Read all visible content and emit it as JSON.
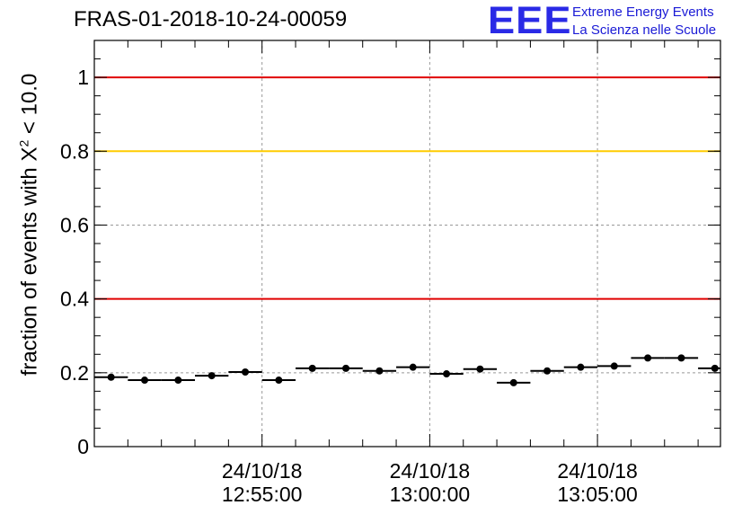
{
  "title": "FRAS-01-2018-10-24-00059",
  "logo": {
    "mark": "EEE",
    "line1": "Extreme Energy Events",
    "line2": "La Scienza nelle Scuole",
    "color": "#2a2ae6"
  },
  "chart_data": {
    "type": "scatter",
    "title": "FRAS-01-2018-10-24-00059",
    "xlabel": "",
    "ylabel_prefix": "fraction of events with ",
    "ylabel_chi": "X",
    "ylabel_sup": "2",
    "ylabel_suffix": " < 10.0",
    "x_unit": "minutes",
    "xlim": [
      "2018-10-24 12:50:00",
      "2018-10-24 13:08:40"
    ],
    "ylim": [
      0,
      1.1
    ],
    "yticks": [
      "0",
      "0.2",
      "0.4",
      "0.6",
      "0.8",
      "1"
    ],
    "xticks": [
      {
        "date": "24/10/18",
        "time": "12:55:00"
      },
      {
        "date": "24/10/18",
        "time": "13:00:00"
      },
      {
        "date": "24/10/18",
        "time": "13:05:00"
      }
    ],
    "grid": true,
    "series": [
      {
        "marker": "circle",
        "color": "#000000",
        "bin_width_minutes": 1,
        "x": [
          "12:50:30",
          "12:51:30",
          "12:52:30",
          "12:53:30",
          "12:54:30",
          "12:55:30",
          "12:56:30",
          "12:57:30",
          "12:58:30",
          "12:59:30",
          "13:00:30",
          "13:01:30",
          "13:02:30",
          "13:03:30",
          "13:04:30",
          "13:05:30",
          "13:06:30",
          "13:07:30",
          "13:08:30"
        ],
        "y": [
          0.188,
          0.18,
          0.18,
          0.192,
          0.202,
          0.18,
          0.212,
          0.212,
          0.205,
          0.215,
          0.197,
          0.21,
          0.173,
          0.205,
          0.215,
          0.218,
          0.24,
          0.24,
          0.212
        ]
      }
    ],
    "reference_lines": [
      {
        "y": 1.0,
        "color": "#e00000"
      },
      {
        "y": 0.8,
        "color": "#ffcc00"
      },
      {
        "y": 0.4,
        "color": "#e00000"
      }
    ]
  }
}
